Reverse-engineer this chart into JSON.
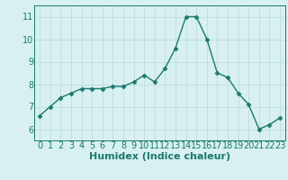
{
  "x": [
    0,
    1,
    2,
    3,
    4,
    5,
    6,
    7,
    8,
    9,
    10,
    11,
    12,
    13,
    14,
    15,
    16,
    17,
    18,
    19,
    20,
    21,
    22,
    23
  ],
  "y": [
    6.6,
    7.0,
    7.4,
    7.6,
    7.8,
    7.8,
    7.8,
    7.9,
    7.9,
    8.1,
    8.4,
    8.1,
    8.7,
    9.6,
    11.0,
    11.0,
    10.0,
    8.5,
    8.3,
    7.6,
    7.1,
    6.0,
    6.2,
    6.5
  ],
  "line_color": "#1a7a6e",
  "bg_color": "#d8f0f0",
  "grid_color": "#c0dcdc",
  "xlabel": "Humidex (Indice chaleur)",
  "xlim": [
    -0.5,
    23.5
  ],
  "ylim": [
    5.5,
    11.5
  ],
  "yticks": [
    6,
    7,
    8,
    9,
    10,
    11
  ],
  "xticks": [
    0,
    1,
    2,
    3,
    4,
    5,
    6,
    7,
    8,
    9,
    10,
    11,
    12,
    13,
    14,
    15,
    16,
    17,
    18,
    19,
    20,
    21,
    22,
    23
  ],
  "tick_color": "#1a7a6e",
  "font_size": 7,
  "xlabel_fontsize": 8,
  "marker_size": 2.5,
  "line_width": 1.0
}
